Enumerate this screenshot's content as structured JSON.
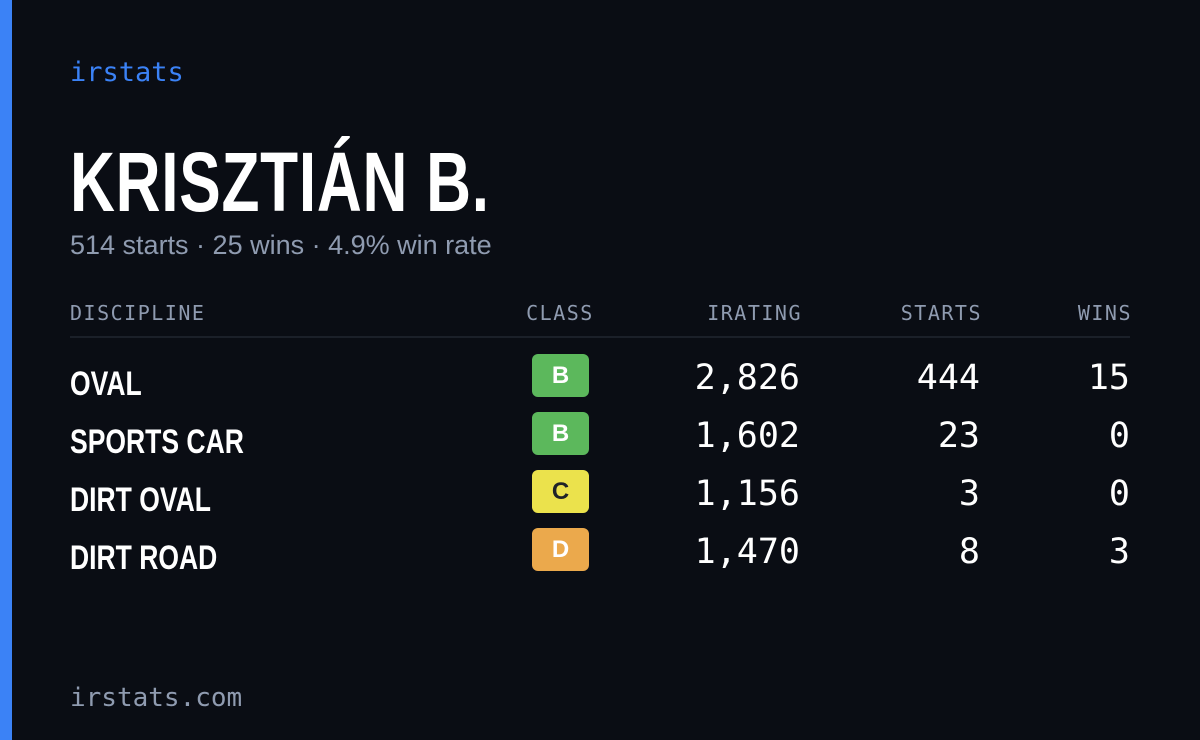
{
  "header": {
    "brand": "irstats",
    "name": "KRISZTIÁN B.",
    "summary": "514 starts · 25 wins · 4.9% win rate"
  },
  "table": {
    "columns": [
      "DISCIPLINE",
      "CLASS",
      "IRATING",
      "STARTS",
      "WINS"
    ],
    "rows": [
      {
        "discipline": "OVAL",
        "class": "B",
        "class_color": "#5cb85c",
        "class_text_color": "#ffffff",
        "irating": "2,826",
        "starts": 444,
        "wins": 15
      },
      {
        "discipline": "SPORTS CAR",
        "class": "B",
        "class_color": "#5cb85c",
        "class_text_color": "#ffffff",
        "irating": "1,602",
        "starts": 23,
        "wins": 0
      },
      {
        "discipline": "DIRT OVAL",
        "class": "C",
        "class_color": "#ebe24c",
        "class_text_color": "#1f2328",
        "irating": "1,156",
        "starts": 3,
        "wins": 0
      },
      {
        "discipline": "DIRT ROAD",
        "class": "D",
        "class_color": "#eba94c",
        "class_text_color": "#ffffff",
        "irating": "1,470",
        "starts": 8,
        "wins": 3
      }
    ]
  },
  "footer": {
    "url": "irstats.com"
  }
}
